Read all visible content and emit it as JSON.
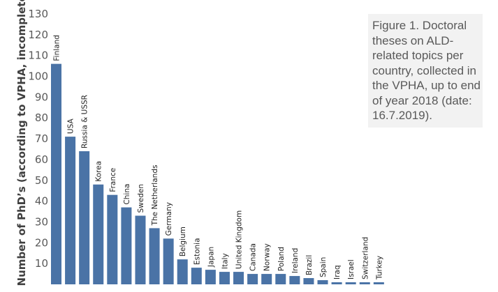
{
  "chart_data": {
    "type": "bar",
    "title": "",
    "xlabel": "",
    "ylabel": "Number of PhD’s (according to VPHA, incomplete)",
    "ylim": [
      0,
      130
    ],
    "yticks": [
      10,
      20,
      30,
      40,
      50,
      60,
      70,
      80,
      90,
      100,
      110,
      120,
      130
    ],
    "grid": false,
    "bar_color": "#4a73a6",
    "categories": [
      "Finland",
      "USA",
      "Russia & USSR",
      "Korea",
      "France",
      "China",
      "Sweden",
      "The Netherlands",
      "Germany",
      "Belgium",
      "Estonia",
      "Japan",
      "Italy",
      "United Kingdom",
      "Canada",
      "Norway",
      "Poland",
      "Ireland",
      "Brazil",
      "Spain",
      "Iraq",
      "Israel",
      "Switzerland",
      "Turkey"
    ],
    "values": [
      106,
      71,
      64,
      48,
      43,
      37,
      33,
      27,
      22,
      12,
      8,
      7,
      6,
      6,
      5,
      5,
      5,
      4,
      3,
      2,
      1,
      1,
      1,
      1
    ],
    "caption": "Figure 1. Doctoral theses on ALD-related topics per country, collected in the VPHA, up to end of year 2018 (date: 16.7.2019)."
  }
}
